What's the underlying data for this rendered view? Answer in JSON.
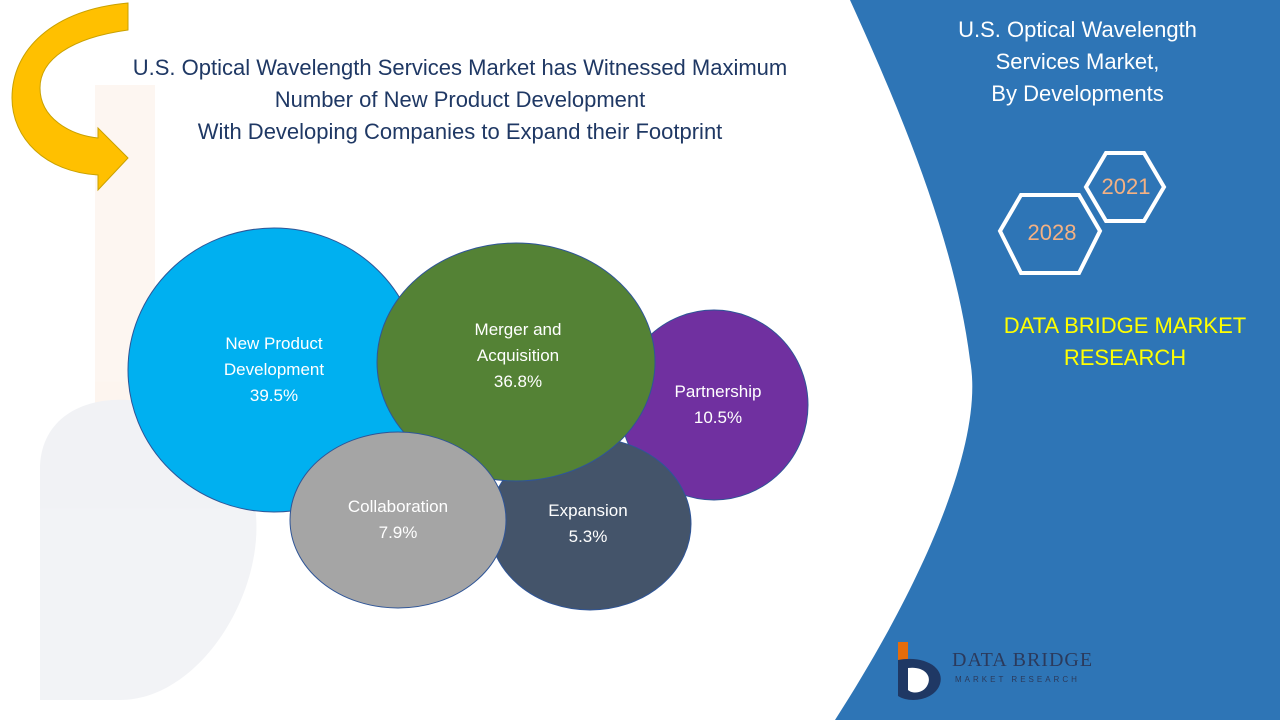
{
  "headline": {
    "line1": "U.S. Optical Wavelength Services Market has Witnessed Maximum",
    "line2": "Number of New Product Development",
    "line3": "With Developing Companies to Expand their Footprint"
  },
  "side_panel": {
    "title_line1": "U.S. Optical Wavelength",
    "title_line2": "Services Market,",
    "title_line3": "By Developments",
    "year_start": "2021",
    "year_end": "2028",
    "brand_line1": "DATA BRIDGE MARKET",
    "brand_line2": "RESEARCH"
  },
  "logo": {
    "name": "DATA BRIDGE",
    "tagline": "MARKET RESEARCH"
  },
  "colors": {
    "panel_blue": "#2e75b6",
    "title_navy": "#1f3864",
    "brand_yellow": "#ffff00",
    "hexagon_text": "#f4b183",
    "arrow_gold": "#ffc000"
  },
  "chart_data": {
    "type": "bubble",
    "title": "U.S. Optical Wavelength Services Market, By Developments",
    "unit": "%",
    "segments": [
      {
        "label_line1": "New Product",
        "label_line2": "Development",
        "value": 39.5,
        "value_text": "39.5%",
        "color": "#00b0f0"
      },
      {
        "label_line1": "Merger and",
        "label_line2": "Acquisition",
        "value": 36.8,
        "value_text": "36.8%",
        "color": "#548235"
      },
      {
        "label_line1": "Partnership",
        "label_line2": "",
        "value": 10.5,
        "value_text": "10.5%",
        "color": "#7030a0"
      },
      {
        "label_line1": "Collaboration",
        "label_line2": "",
        "value": 7.9,
        "value_text": "7.9%",
        "color": "#a5a5a5"
      },
      {
        "label_line1": "Expansion",
        "label_line2": "",
        "value": 5.3,
        "value_text": "5.3%",
        "color": "#44546a"
      }
    ]
  }
}
